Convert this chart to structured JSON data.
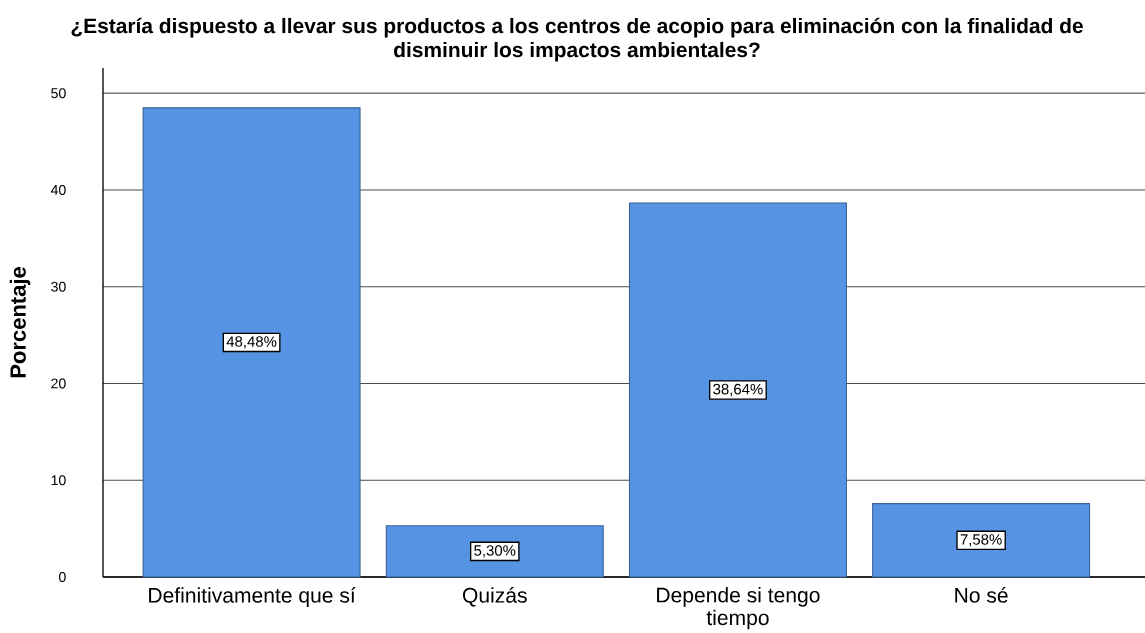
{
  "chart_data": {
    "type": "bar",
    "title": "¿Estaría dispuesto a llevar sus productos a los centros de acopio para eliminación con la finalidad de disminuir los impactos ambientales?",
    "ylabel": "Porcentaje",
    "categories": [
      "Definitivamente que sí",
      "Quizás",
      "Depende si tengo tiempo",
      "No sé"
    ],
    "values": [
      48.48,
      5.3,
      38.64,
      7.58
    ],
    "value_labels": [
      "48,48%",
      "5,30%",
      "38,64%",
      "7,58%"
    ],
    "color": "#5694e3",
    "ylim": [
      0,
      52.6
    ],
    "yticks": [
      0,
      10,
      20,
      30,
      40,
      50
    ],
    "grid": "y"
  }
}
